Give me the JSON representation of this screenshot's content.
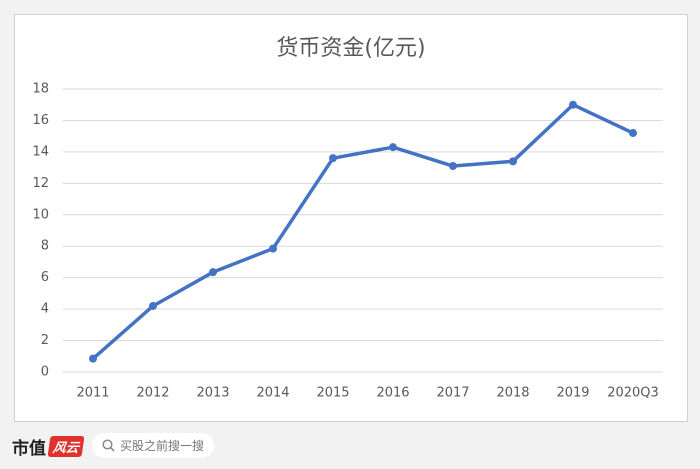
{
  "chart_data": {
    "type": "line",
    "title": "货币资金(亿元)",
    "categories": [
      "2011",
      "2012",
      "2013",
      "2014",
      "2015",
      "2016",
      "2017",
      "2018",
      "2019",
      "2020Q3"
    ],
    "series": [
      {
        "name": "货币资金",
        "color": "#4472c4",
        "values": [
          0.85,
          4.2,
          6.35,
          7.85,
          13.6,
          14.3,
          13.1,
          13.4,
          17.0,
          15.2
        ]
      }
    ],
    "ylim": [
      0,
      18
    ],
    "yticks": [
      0,
      2,
      4,
      6,
      8,
      10,
      12,
      14,
      16,
      18
    ],
    "grid": true
  },
  "footer": {
    "brand": "市值",
    "logo": "风云",
    "search_placeholder": "买股之前搜一搜"
  }
}
